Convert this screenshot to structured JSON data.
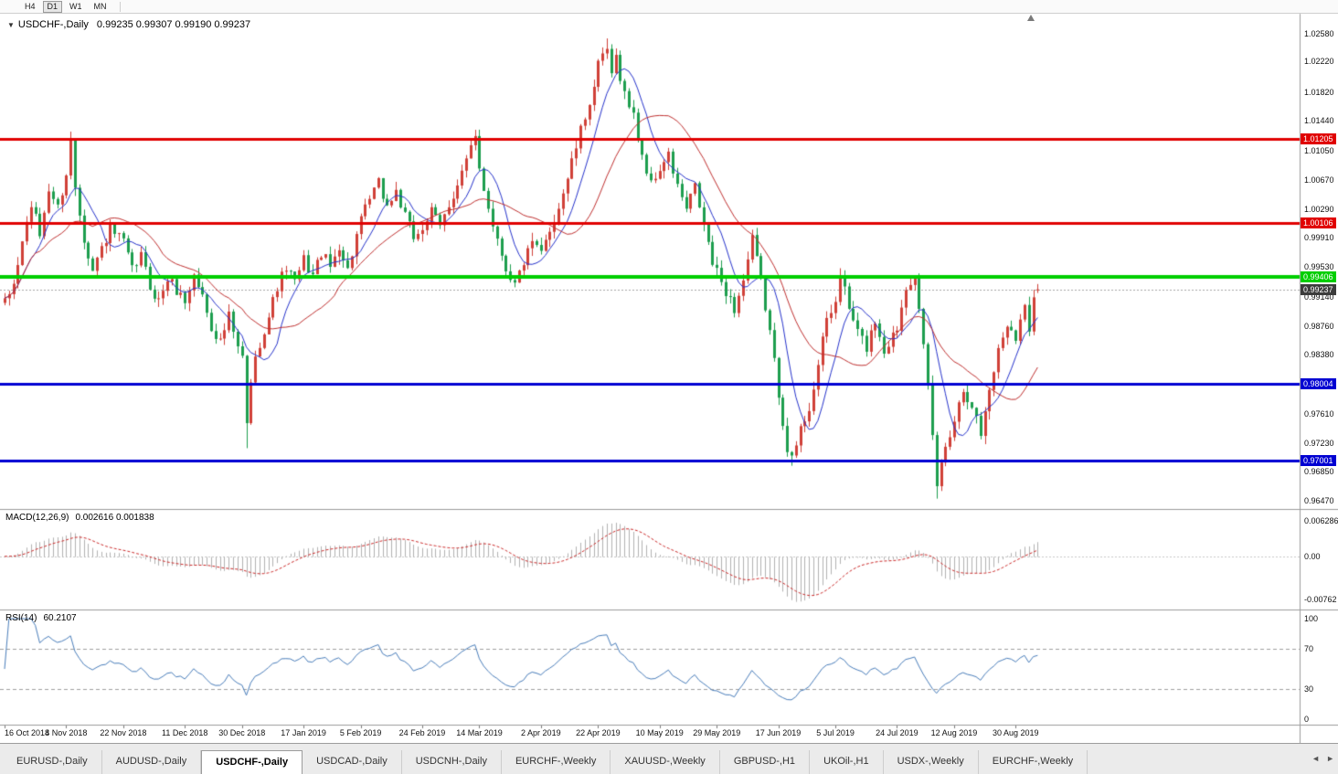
{
  "toolbar": {
    "timeframes": [
      {
        "label": "H4",
        "active": false
      },
      {
        "label": "D1",
        "active": true
      },
      {
        "label": "W1",
        "active": false
      },
      {
        "label": "MN",
        "active": false
      }
    ]
  },
  "icons": {
    "dropdown": "▼"
  },
  "chart": {
    "symbol_title": "USDCHF-,Daily",
    "ohlc_text": "0.99235 0.99307 0.99190 0.99237"
  },
  "macd_panel": {
    "title": "MACD(12,26,9)",
    "values_text": "0.002616 0.001838",
    "axis": [
      {
        "label": "0.006286",
        "value": 0.006286
      },
      {
        "label": "0.00",
        "value": 0
      },
      {
        "label": "-0.00762",
        "value": -0.00762
      }
    ]
  },
  "rsi_panel": {
    "title": "RSI(14)",
    "value_text": "60.2107",
    "axis": [
      {
        "label": "100",
        "value": 100
      },
      {
        "label": "70",
        "value": 70
      },
      {
        "label": "30",
        "value": 30
      },
      {
        "label": "0",
        "value": 0
      }
    ],
    "levels": [
      70,
      30
    ]
  },
  "price_axis_ticks": [
    "1.02580",
    "1.02220",
    "1.01820",
    "1.01440",
    "1.01050",
    "1.00670",
    "1.00290",
    "0.99910",
    "0.99530",
    "0.99140",
    "0.98760",
    "0.98380",
    "0.97610",
    "0.97230",
    "0.96850",
    "0.96470"
  ],
  "hlines": [
    {
      "price": 1.01205,
      "label": "1.01205",
      "color": "#e00000",
      "thickness": 3,
      "label_bg": "#e00000",
      "label_fg": "#ffffff"
    },
    {
      "price": 1.00106,
      "label": "1.00106",
      "color": "#e00000",
      "thickness": 3,
      "label_bg": "#e00000",
      "label_fg": "#ffffff"
    },
    {
      "price": 0.99406,
      "label": "0.99406",
      "color": "#00ce00",
      "thickness": 4,
      "label_bg": "#00ce00",
      "label_fg": "#ffffff"
    },
    {
      "price": 0.98004,
      "label": "0.98004",
      "color": "#0000d2",
      "thickness": 3,
      "label_bg": "#0000d2",
      "label_fg": "#ffffff"
    },
    {
      "price": 0.97001,
      "label": "0.97001",
      "color": "#0000d2",
      "thickness": 3,
      "label_bg": "#0000d2",
      "label_fg": "#ffffff"
    }
  ],
  "current_price": {
    "value": 0.99237,
    "label": "0.99237",
    "bg": "#3c3c3c",
    "fg": "#ffffff"
  },
  "date_axis": [
    {
      "label": "16 Oct 2018",
      "day": 0
    },
    {
      "label": "4 Nov 2018",
      "day": 14
    },
    {
      "label": "22 Nov 2018",
      "day": 27
    },
    {
      "label": "11 Dec 2018",
      "day": 41
    },
    {
      "label": "30 Dec 2018",
      "day": 54
    },
    {
      "label": "17 Jan 2019",
      "day": 68
    },
    {
      "label": "5 Feb 2019",
      "day": 81
    },
    {
      "label": "24 Feb 2019",
      "day": 95
    },
    {
      "label": "14 Mar 2019",
      "day": 108
    },
    {
      "label": "2 Apr 2019",
      "day": 122
    },
    {
      "label": "22 Apr 2019",
      "day": 135
    },
    {
      "label": "10 May 2019",
      "day": 149
    },
    {
      "label": "29 May 2019",
      "day": 162
    },
    {
      "label": "17 Jun 2019",
      "day": 176
    },
    {
      "label": "5 Jul 2019",
      "day": 189
    },
    {
      "label": "24 Jul 2019",
      "day": 203
    },
    {
      "label": "12 Aug 2019",
      "day": 216
    },
    {
      "label": "30 Aug 2019",
      "day": 230
    }
  ],
  "tabs": [
    {
      "label": "EURUSD-,Daily",
      "active": false
    },
    {
      "label": "AUDUSD-,Daily",
      "active": false
    },
    {
      "label": "USDCHF-,Daily",
      "active": true
    },
    {
      "label": "USDCAD-,Daily",
      "active": false
    },
    {
      "label": "USDCNH-,Daily",
      "active": false
    },
    {
      "label": "EURCHF-,Weekly",
      "active": false
    },
    {
      "label": "XAUUSD-,Weekly",
      "active": false
    },
    {
      "label": "GBPUSD-,H1",
      "active": false
    },
    {
      "label": "UKOil-,H1",
      "active": false
    },
    {
      "label": "USDX-,Weekly",
      "active": false
    },
    {
      "label": "EURCHF-,Weekly",
      "active": false
    }
  ],
  "tab_scroll": {
    "left": "◄",
    "right": "►"
  },
  "colors": {
    "candle_up": "#d04038",
    "candle_down": "#1d9e4e",
    "ma_fast": "#2633cc",
    "ma_slow": "#c03030",
    "macd_hist": "#b2b2b2",
    "macd_signal": "#cc2a2a",
    "rsi_line": "#4a7ebb"
  },
  "chart_data": {
    "type": "candlestick",
    "symbol": "USDCHF",
    "timeframe": "Daily",
    "candle_count": 236,
    "price_range": {
      "max": 1.027,
      "min": 0.964
    },
    "last_ohlc": {
      "open": 0.99235,
      "high": 0.99307,
      "low": 0.9919,
      "close": 0.99237
    },
    "close_anchors": [
      [
        0,
        0.9905
      ],
      [
        2,
        0.993
      ],
      [
        4,
        0.9985
      ],
      [
        6,
        1.0035
      ],
      [
        8,
        0.9995
      ],
      [
        10,
        1.0055
      ],
      [
        12,
        1.003
      ],
      [
        14,
        1.0075
      ],
      [
        15,
        1.0118
      ],
      [
        16,
        1.0058
      ],
      [
        18,
        0.9992
      ],
      [
        20,
        0.9948
      ],
      [
        22,
        0.9978
      ],
      [
        24,
        1.0002
      ],
      [
        27,
        0.9985
      ],
      [
        29,
        0.9948
      ],
      [
        31,
        0.9968
      ],
      [
        33,
        0.9928
      ],
      [
        35,
        0.9908
      ],
      [
        37,
        0.9938
      ],
      [
        41,
        0.9908
      ],
      [
        43,
        0.9942
      ],
      [
        45,
        0.9915
      ],
      [
        47,
        0.9875
      ],
      [
        49,
        0.9855
      ],
      [
        51,
        0.9888
      ],
      [
        53,
        0.9845
      ],
      [
        54,
        0.9835
      ],
      [
        55,
        0.9745
      ],
      [
        56,
        0.9805
      ],
      [
        58,
        0.9855
      ],
      [
        60,
        0.9888
      ],
      [
        62,
        0.9928
      ],
      [
        64,
        0.9952
      ],
      [
        66,
        0.9932
      ],
      [
        68,
        0.9962
      ],
      [
        70,
        0.9942
      ],
      [
        72,
        0.9972
      ],
      [
        74,
        0.9952
      ],
      [
        76,
        0.9982
      ],
      [
        78,
        0.9948
      ],
      [
        80,
        0.9995
      ],
      [
        81,
        1.0012
      ],
      [
        83,
        1.0042
      ],
      [
        85,
        1.0062
      ],
      [
        87,
        1.0032
      ],
      [
        89,
        1.0052
      ],
      [
        91,
        1.0018
      ],
      [
        93,
        0.9992
      ],
      [
        95,
        1.0005
      ],
      [
        97,
        1.0025
      ],
      [
        99,
        1.0005
      ],
      [
        101,
        1.0035
      ],
      [
        103,
        1.0062
      ],
      [
        105,
        1.0092
      ],
      [
        107,
        1.012
      ],
      [
        108,
        1.0082
      ],
      [
        110,
        1.0032
      ],
      [
        112,
        0.999
      ],
      [
        114,
        0.9952
      ],
      [
        116,
        0.993
      ],
      [
        118,
        0.996
      ],
      [
        120,
        0.9982
      ],
      [
        122,
        0.997
      ],
      [
        124,
        1.0002
      ],
      [
        126,
        1.0032
      ],
      [
        128,
        1.007
      ],
      [
        130,
        1.011
      ],
      [
        132,
        1.015
      ],
      [
        134,
        1.019
      ],
      [
        135,
        1.0215
      ],
      [
        137,
        1.0238
      ],
      [
        138,
        1.02
      ],
      [
        139,
        1.0228
      ],
      [
        141,
        1.018
      ],
      [
        143,
        1.015
      ],
      [
        145,
        1.01
      ],
      [
        147,
        1.006
      ],
      [
        149,
        1.0082
      ],
      [
        151,
        1.0098
      ],
      [
        153,
        1.0058
      ],
      [
        155,
        1.0028
      ],
      [
        157,
        1.0058
      ],
      [
        159,
        1.0008
      ],
      [
        161,
        0.9958
      ],
      [
        162,
        0.9945
      ],
      [
        164,
        0.9922
      ],
      [
        166,
        0.9898
      ],
      [
        168,
        0.9935
      ],
      [
        170,
        0.9988
      ],
      [
        172,
        0.9935
      ],
      [
        174,
        0.9868
      ],
      [
        176,
        0.9788
      ],
      [
        178,
        0.9718
      ],
      [
        179,
        0.97
      ],
      [
        181,
        0.974
      ],
      [
        183,
        0.977
      ],
      [
        185,
        0.9824
      ],
      [
        187,
        0.9884
      ],
      [
        189,
        0.9906
      ],
      [
        190,
        0.9945
      ],
      [
        192,
        0.9898
      ],
      [
        194,
        0.9868
      ],
      [
        196,
        0.9848
      ],
      [
        198,
        0.9884
      ],
      [
        200,
        0.9844
      ],
      [
        203,
        0.9874
      ],
      [
        205,
        0.993
      ],
      [
        207,
        0.9944
      ],
      [
        208,
        0.9894
      ],
      [
        210,
        0.9795
      ],
      [
        212,
        0.9668
      ],
      [
        214,
        0.972
      ],
      [
        216,
        0.9754
      ],
      [
        218,
        0.9794
      ],
      [
        220,
        0.9774
      ],
      [
        222,
        0.9734
      ],
      [
        224,
        0.9794
      ],
      [
        226,
        0.9844
      ],
      [
        228,
        0.988
      ],
      [
        230,
        0.9864
      ],
      [
        232,
        0.99
      ],
      [
        233,
        0.9874
      ],
      [
        234,
        0.9918
      ],
      [
        235,
        0.99237
      ]
    ],
    "key_extremes": [
      {
        "day": 55,
        "kind": "low",
        "price": 0.9716
      },
      {
        "day": 137,
        "kind": "high",
        "price": 1.0252
      },
      {
        "day": 179,
        "kind": "low",
        "price": 0.9693
      },
      {
        "day": 212,
        "kind": "low",
        "price": 0.965
      }
    ],
    "indicators": {
      "ma_fast": {
        "type": "sma",
        "period": 8
      },
      "ma_slow": {
        "type": "sma",
        "period": 21
      },
      "macd": {
        "fast": 12,
        "slow": 26,
        "signal": 9
      },
      "rsi": {
        "period": 14
      }
    }
  }
}
